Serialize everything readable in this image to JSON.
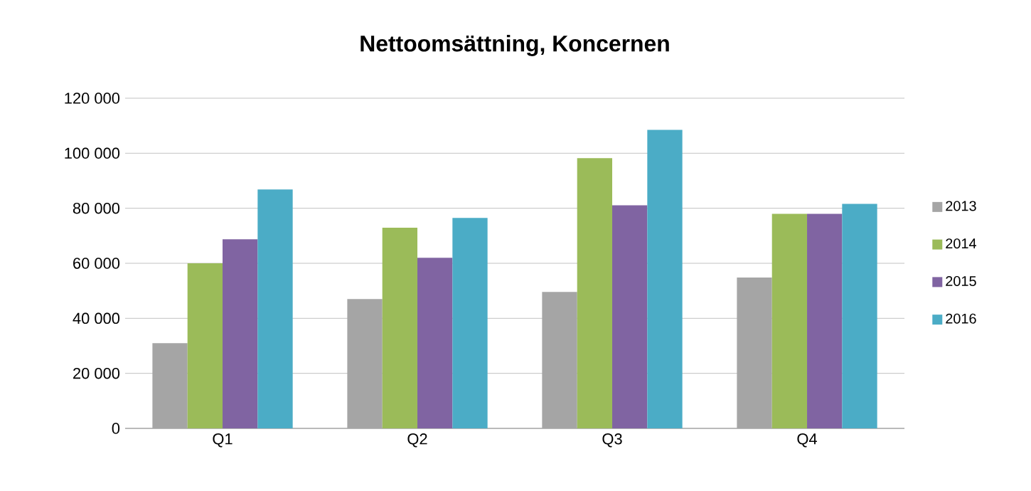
{
  "chart_data": {
    "type": "bar",
    "title": "Nettoomsättning, Koncernen",
    "categories": [
      "Q1",
      "Q2",
      "Q3",
      "Q4"
    ],
    "series": [
      {
        "name": "2013",
        "color": "#a5a5a5",
        "values": [
          31000,
          47000,
          49600,
          54800
        ]
      },
      {
        "name": "2014",
        "color": "#9bbb59",
        "values": [
          60000,
          72900,
          98200,
          78000
        ]
      },
      {
        "name": "2015",
        "color": "#8064a2",
        "values": [
          68700,
          62000,
          81100,
          78000
        ]
      },
      {
        "name": "2016",
        "color": "#4bacc6",
        "values": [
          86800,
          76500,
          108500,
          81600
        ]
      }
    ],
    "ylim": [
      0,
      120000
    ],
    "yticks": [
      {
        "value": 0,
        "label": "0"
      },
      {
        "value": 20000,
        "label": "20 000"
      },
      {
        "value": 40000,
        "label": "40 000"
      },
      {
        "value": 60000,
        "label": "60 000"
      },
      {
        "value": 80000,
        "label": "80 000"
      },
      {
        "value": 100000,
        "label": "100 000"
      },
      {
        "value": 120000,
        "label": "120 000"
      }
    ],
    "grid": "y",
    "legend": "right"
  }
}
